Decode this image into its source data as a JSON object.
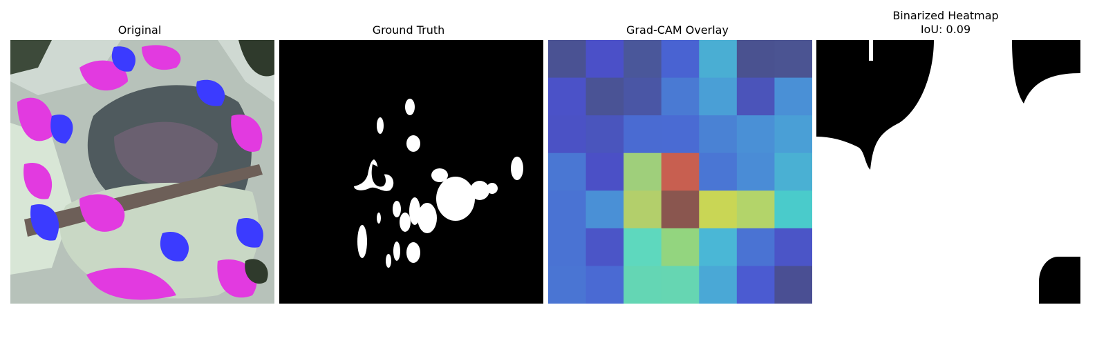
{
  "panels": {
    "original": {
      "title": "Original"
    },
    "ground_truth": {
      "title": "Ground Truth"
    },
    "gradcam": {
      "title": "Grad-CAM Overlay",
      "grid": [
        [
          "#4a5293",
          "#4b50c8",
          "#4a579a",
          "#4963d2",
          "#4aaed3",
          "#4a5290",
          "#4b5492"
        ],
        [
          "#4b52c8",
          "#4a5395",
          "#4a56a5",
          "#4a7ad3",
          "#4a9fd6",
          "#4b54ba",
          "#4a90d6"
        ],
        [
          "#4b52c5",
          "#4a55bd",
          "#4a6bd2",
          "#4a6bd3",
          "#4a82d4",
          "#4a90d6",
          "#4a9fd6"
        ],
        [
          "#4a77d3",
          "#4b50c6",
          "#9fcf7b",
          "#c85f50",
          "#4a76d4",
          "#4a8cd6",
          "#4ab0d3"
        ],
        [
          "#4a73d3",
          "#4a90d6",
          "#b3cf6b",
          "#8a564f",
          "#c9d655",
          "#b3d46a",
          "#4acbcb"
        ],
        [
          "#4a73d3",
          "#4b55c7",
          "#5ed8be",
          "#93d57f",
          "#4ab7d6",
          "#4a73d3",
          "#4b55c7"
        ],
        [
          "#4a75d3",
          "#4a6ad3",
          "#64d6b4",
          "#66d6b2",
          "#4aa8d6",
          "#4b5bd1",
          "#4a4f93"
        ]
      ]
    },
    "binarized": {
      "title": "Binarized Heatmap\nIoU: 0.09"
    }
  }
}
